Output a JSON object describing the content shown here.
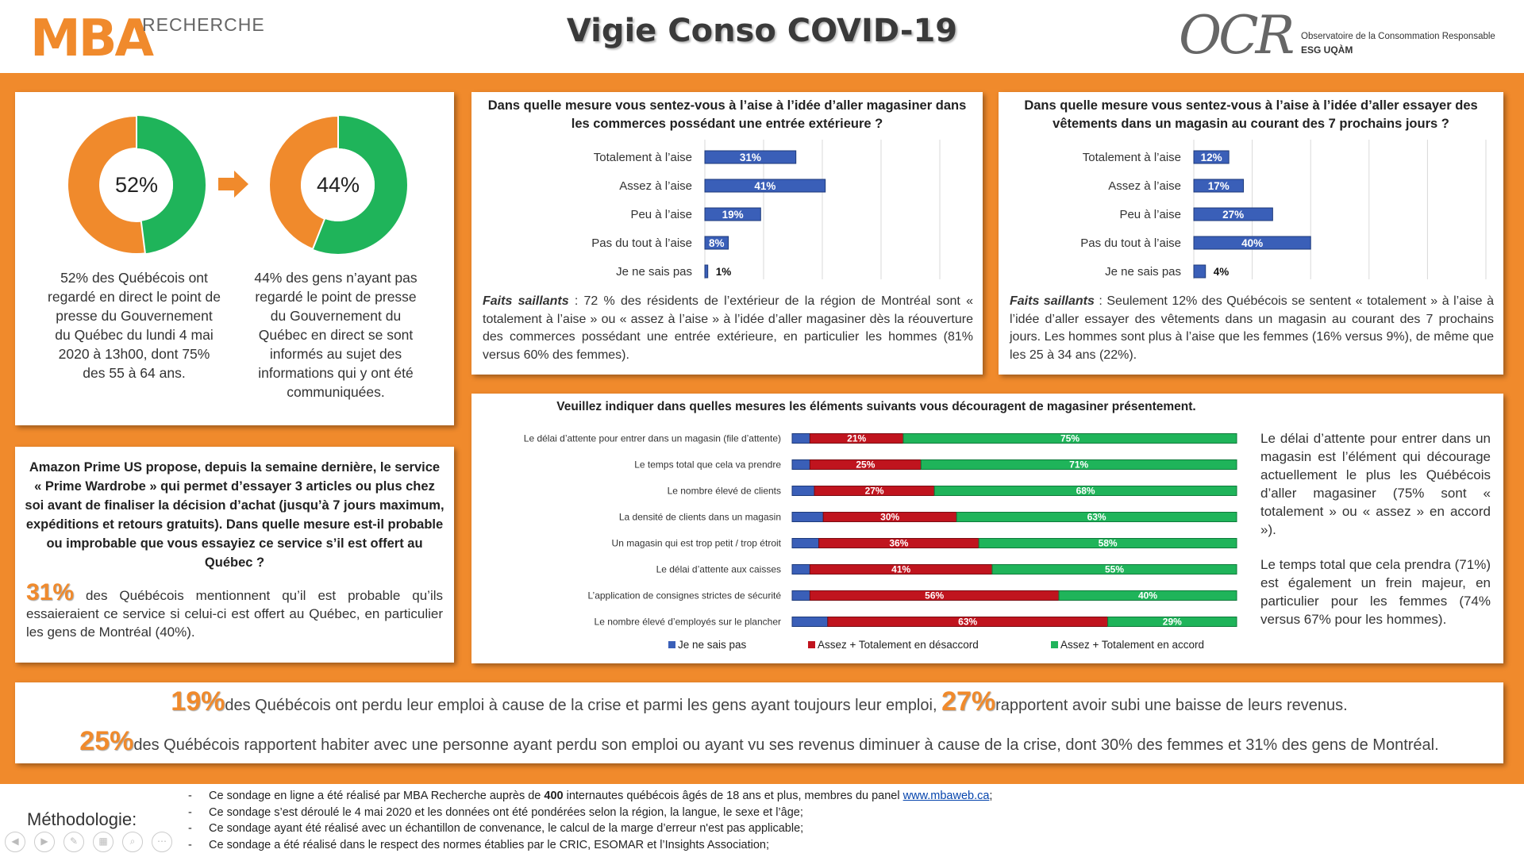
{
  "header": {
    "title": "Vigie Conso COVID-19",
    "logo_left_main": "MBA",
    "logo_left_sub": "RECHERCHE",
    "logo_right_main": "OCR",
    "logo_right_line1": "Observatoire de la Consommation Responsable",
    "logo_right_line2": "ESG UQÀM"
  },
  "colors": {
    "orange": "#F08A2C",
    "green": "#1FB45A",
    "blue": "#3A5FB8",
    "red": "#C0141E"
  },
  "donuts": {
    "left": {
      "label": "52%",
      "value": 52,
      "text": "52% des Québécois ont regardé en direct le point de presse du Gouvernement du Québec du lundi 4 mai 2020 à 13h00, dont 75% des 55 à 64 ans."
    },
    "right": {
      "label": "44%",
      "value": 44,
      "text": "44% des gens n’ayant pas regardé le point de presse du Gouvernement du Québec en direct se sont informés au sujet des informations qui y ont été communiquées."
    },
    "arrow_icon": "right-arrow-icon"
  },
  "panel_outdoor": {
    "faits_label": "Faits saillants",
    "faits_text": " : 72 % des résidents de l’extérieur de la région de Montréal sont « totalement à l’aise » ou « assez à l’aise » à l’idée d’aller magasiner dès la réouverture des commerces possédant une entrée extérieure, en particulier les hommes (81% versus 60% des femmes)."
  },
  "panel_clothes": {
    "faits_label": "Faits saillants",
    "faits_text": " : Seulement 12% des Québécois se sentent « totalement » à l’aise à l’idée d’aller essayer des vêtements dans un magasin au courant des 7 prochains jours. Les hommes sont plus à l’aise que les femmes (16% versus 9%), de même que les 25 à 34 ans (22%)."
  },
  "panel_amazon": {
    "question": "Amazon Prime US propose, depuis la semaine dernière, le service « Prime Wardrobe » qui permet d’essayer 3 articles ou plus chez soi avant de finaliser la décision d’achat (jusqu’à 7 jours maximum, expéditions et retours gratuits). Dans quelle mesure est-il probable ou improbable que vous essayiez ce service s’il est offert au Québec ?",
    "pct": "31%",
    "answer": " des Québécois mentionnent qu’il est probable qu’ils essaieraient ce service si celui-ci est offert au Québec, en particulier les gens de Montréal (40%)."
  },
  "panel_deterrents": {
    "side_p1": "Le délai d’attente pour entrer dans un magasin est l’élément qui décourage actuellement le plus les Québécois d’aller magasiner (75% sont « totalement » ou « assez » en accord »).",
    "side_p2": "Le temps total que cela prendra (71%) est également un frein majeur, en particulier pour les femmes (74% versus 67% pour les hommes)."
  },
  "banner": {
    "pct1": "19%",
    "text1": "des Québécois ont perdu leur emploi à cause de la crise et parmi les gens ayant toujours leur emploi, ",
    "pct2": "27%",
    "text2": "rapportent avoir subi une baisse de leurs revenus.",
    "pct3": "25%",
    "text3": "des Québécois rapportent habiter avec une personne ayant perdu son emploi ou ayant vu ses revenus diminuer à cause de la crise, dont 30% des femmes et 31% des gens de Montréal."
  },
  "methodology": {
    "label": "Méthodologie:",
    "dash": "-",
    "l1a": "Ce sondage en ligne a été réalisé par MBA Recherche auprès de ",
    "l1b": "400",
    "l1c": " internautes québécois âgés de 18 ans et plus, membres du panel ",
    "l1link": "www.mbaweb.ca",
    "l1d": ";",
    "l2": "Ce sondage s’est déroulé le 4 mai 2020 et les données ont été pondérées selon la région, la langue, le sexe et l’âge;",
    "l3": "Ce sondage ayant été réalisé avec un échantillon de convenance, le calcul de la marge d’erreur n'est pas applicable;",
    "l4": "Ce sondage a été réalisé dans le respect des normes établies par le CRIC, ESOMAR et l’Insights Association;"
  },
  "chart_data": [
    {
      "type": "bar",
      "title": "Dans quelle mesure vous sentez-vous à l’aise à l’idée d’aller magasiner dans les commerces possédant une entrée extérieure ?",
      "categories": [
        "Totalement à l’aise",
        "Assez à l’aise",
        "Peu à l’aise",
        "Pas du tout à l’aise",
        "Je ne sais pas"
      ],
      "values": [
        31,
        41,
        19,
        8,
        1
      ],
      "labels": [
        "31%",
        "41%",
        "19%",
        "8%",
        "1%"
      ],
      "xlim": [
        0,
        80
      ],
      "grid": true
    },
    {
      "type": "bar",
      "title": "Dans quelle mesure vous sentez-vous à l’aise à l’idée d’aller essayer des vêtements dans un magasin au courant des 7 prochains jours ?",
      "categories": [
        "Totalement à l’aise",
        "Assez à l’aise",
        "Peu à l’aise",
        "Pas du tout à l’aise",
        "Je ne sais pas"
      ],
      "values": [
        12,
        17,
        27,
        40,
        4
      ],
      "labels": [
        "12%",
        "17%",
        "27%",
        "40%",
        "4%"
      ],
      "xlim": [
        0,
        100
      ],
      "grid": true
    },
    {
      "type": "bar",
      "stacked": true,
      "title": "Veuillez indiquer dans quelles mesures les éléments suivants vous découragent de magasiner présentement.",
      "categories": [
        "Le délai d’attente pour entrer dans un magasin (file d’attente)",
        "Le temps total que cela va prendre",
        "Le nombre élevé de clients",
        "La densité de clients dans un magasin",
        "Un magasin qui est trop petit / trop étroit",
        "Le délai d’attente aux caisses",
        "L’application de consignes strictes de sécurité",
        "Le nombre élevé d’employés sur le plancher"
      ],
      "series": [
        {
          "name": "Je ne sais pas",
          "values": [
            4,
            4,
            5,
            7,
            6,
            4,
            4,
            8
          ]
        },
        {
          "name": "Assez + Totalement en désaccord",
          "values": [
            21,
            25,
            27,
            30,
            36,
            41,
            56,
            63
          ],
          "labels": [
            "21%",
            "25%",
            "27%",
            "30%",
            "36%",
            "41%",
            "56%",
            "63%"
          ]
        },
        {
          "name": "Assez + Totalement en accord",
          "values": [
            75,
            71,
            68,
            63,
            58,
            55,
            40,
            29
          ],
          "labels": [
            "75%",
            "71%",
            "68%",
            "63%",
            "58%",
            "55%",
            "40%",
            "29%"
          ]
        }
      ],
      "legend": "bottom"
    }
  ]
}
